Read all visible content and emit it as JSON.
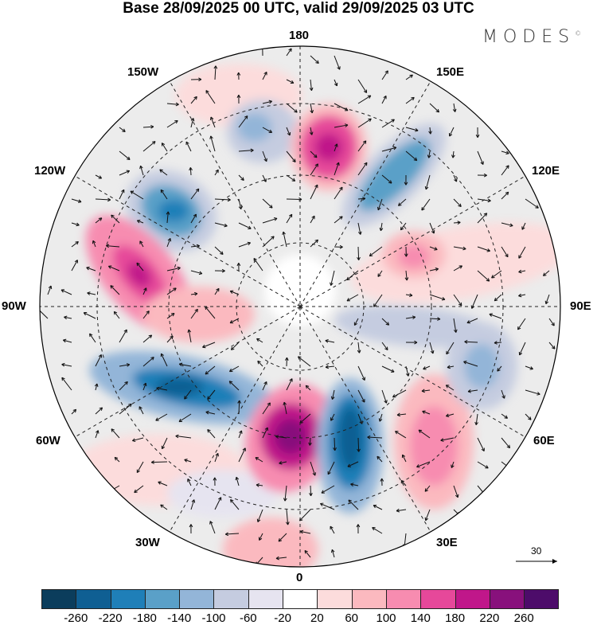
{
  "title": "Base 28/09/2025 00 UTC, valid 29/09/2025 03 UTC",
  "logo": "MODES",
  "logo_mark": "©",
  "longitude_labels": {
    "n180": "180",
    "e150": "150E",
    "e120": "120E",
    "e90": "90E",
    "e60": "60E",
    "e30": "30E",
    "zero": "0",
    "w30": "30W",
    "w60": "60W",
    "w90": "90W",
    "w120": "120W",
    "w150": "150W"
  },
  "vector_reference": "30",
  "colorbar": {
    "colors": [
      "#0b3d5c",
      "#0f5f93",
      "#1f7fb8",
      "#5aa0c8",
      "#93b5d8",
      "#c5cce0",
      "#e6e4f0",
      "#ffffff",
      "#fcdcdc",
      "#fbb9bf",
      "#f78cb0",
      "#e6489a",
      "#c0178a",
      "#88117c",
      "#4d0c6a"
    ],
    "ticks": [
      "-260",
      "-220",
      "-180",
      "-140",
      "-100",
      "-60",
      "-20",
      "20",
      "60",
      "100",
      "140",
      "180",
      "220",
      "260"
    ]
  }
}
